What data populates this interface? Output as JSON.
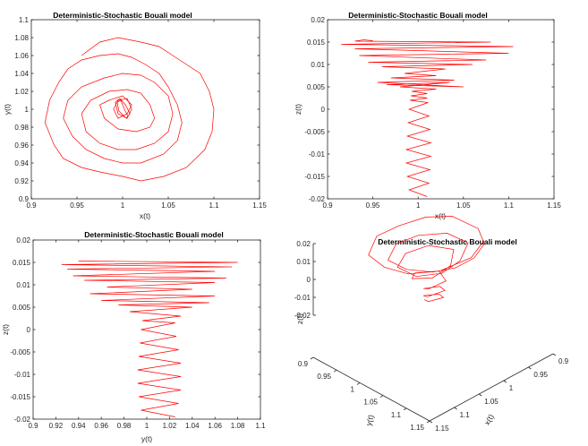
{
  "chart_data": [
    {
      "id": "xy",
      "type": "line",
      "title": "Deterministic-Stochastic Bouali model",
      "xlabel": "x(t)",
      "ylabel": "y(t)",
      "xlim": [
        0.9,
        1.15
      ],
      "ylim": [
        0.9,
        1.1
      ],
      "xticks": [
        0.9,
        0.95,
        1,
        1.05,
        1.1,
        1.15
      ],
      "yticks": [
        0.9,
        0.92,
        0.94,
        0.96,
        0.98,
        1,
        1.02,
        1.04,
        1.06,
        1.08,
        1.1
      ],
      "xtick_labels": [
        "0.9",
        "0.95",
        "1",
        "1.05",
        "1.1",
        "1.15"
      ],
      "ytick_labels": [
        "0.9",
        "0.92",
        "0.94",
        "0.96",
        "0.98",
        "1",
        "1.02",
        "1.04",
        "1.06",
        "1.08",
        "1.1"
      ],
      "series_color": "#ff0000",
      "x": [
        0.955,
        0.975,
        0.995,
        1.02,
        1.04,
        1.055,
        1.07,
        1.085,
        1.095,
        1.1,
        1.098,
        1.09,
        1.07,
        1.045,
        1.02,
        1.0,
        0.975,
        0.955,
        0.935,
        0.925,
        0.915,
        0.92,
        0.93,
        0.94,
        0.955,
        0.975,
        0.995,
        1.01,
        1.025,
        1.04,
        1.05,
        1.06,
        1.065,
        1.06,
        1.045,
        1.02,
        1.0,
        0.98,
        0.96,
        0.945,
        0.935,
        0.94,
        0.955,
        0.98,
        1.0,
        1.02,
        1.035,
        1.05,
        1.055,
        1.05,
        1.035,
        1.015,
        0.995,
        0.975,
        0.96,
        0.955,
        0.965,
        0.985,
        1.005,
        1.02,
        1.03,
        1.035,
        1.03,
        1.015,
        0.995,
        0.98,
        0.975,
        0.985,
        1.0,
        1.01,
        1.005,
        0.995,
        0.99,
        0.995,
        1.005,
        1.01,
        1.005,
        0.995,
        0.992,
        0.997,
        1.003,
        1.008,
        1.004,
        0.996,
        0.994,
        0.998,
        1.002,
        1.006
      ],
      "y": [
        1.06,
        1.075,
        1.08,
        1.075,
        1.07,
        1.06,
        1.05,
        1.04,
        1.02,
        1.0,
        0.975,
        0.955,
        0.935,
        0.925,
        0.92,
        0.925,
        0.93,
        0.935,
        0.945,
        0.96,
        0.985,
        1.01,
        1.03,
        1.045,
        1.055,
        1.06,
        1.062,
        1.058,
        1.05,
        1.04,
        1.025,
        1.005,
        0.985,
        0.965,
        0.95,
        0.94,
        0.94,
        0.945,
        0.955,
        0.97,
        0.99,
        1.01,
        1.025,
        1.035,
        1.04,
        1.038,
        1.03,
        1.015,
        0.995,
        0.975,
        0.962,
        0.955,
        0.955,
        0.962,
        0.975,
        0.995,
        1.01,
        1.02,
        1.022,
        1.018,
        1.005,
        0.99,
        0.98,
        0.975,
        0.978,
        0.99,
        1.005,
        1.01,
        1.015,
        1.005,
        0.995,
        0.99,
        1.0,
        1.01,
        1.012,
        1.0,
        0.99,
        0.995,
        1.008,
        1.012,
        1.005,
        0.995,
        0.99,
        0.998,
        1.008,
        1.01,
        1.0,
        0.992
      ]
    },
    {
      "id": "xz",
      "type": "line",
      "title": "Deterministic-Stochastic Bouali model",
      "xlabel": "x(t)",
      "ylabel": "z(t)",
      "xlim": [
        0.9,
        1.15
      ],
      "ylim": [
        -0.02,
        0.02
      ],
      "xticks": [
        0.9,
        0.95,
        1,
        1.05,
        1.1,
        1.15
      ],
      "yticks": [
        -0.02,
        -0.015,
        -0.01,
        -0.005,
        0,
        0.005,
        0.01,
        0.015,
        0.02
      ],
      "xtick_labels": [
        "0.9",
        "0.95",
        "1",
        "1.05",
        "1.1",
        "1.15"
      ],
      "ytick_labels": [
        "-0.02",
        "-0.015",
        "-0.01",
        "-0.005",
        "0",
        "0.005",
        "0.01",
        "0.015",
        "0.02"
      ],
      "series_color": "#ff0000",
      "x": [
        1.01,
        0.99,
        1.012,
        0.988,
        1.013,
        0.987,
        1.014,
        0.987,
        1.014,
        0.988,
        1.013,
        0.989,
        1.012,
        0.99,
        1.011,
        0.991,
        1.01,
        0.992,
        1.01,
        0.993,
        1.02,
        0.98,
        1.035,
        0.965,
        1.05,
        0.955,
        1.04,
        0.97,
        1.02,
        0.985,
        1.03,
        0.96,
        1.06,
        0.945,
        1.075,
        0.935,
        1.1,
        0.93,
        1.105,
        0.915,
        1.08,
        0.93,
        0.94,
        0.95
      ],
      "y": [
        -0.0195,
        -0.018,
        -0.0165,
        -0.015,
        -0.0135,
        -0.012,
        -0.0105,
        -0.009,
        -0.0075,
        -0.006,
        -0.0045,
        -0.003,
        -0.0015,
        0.0,
        0.0015,
        0.002,
        0.0025,
        0.003,
        0.0035,
        0.004,
        0.0045,
        0.005,
        0.006,
        0.0055,
        0.005,
        0.006,
        0.0065,
        0.007,
        0.0075,
        0.008,
        0.009,
        0.0095,
        0.01,
        0.0105,
        0.011,
        0.012,
        0.0125,
        0.0135,
        0.014,
        0.0145,
        0.015,
        0.0152,
        0.0155,
        0.0153
      ]
    },
    {
      "id": "yz",
      "type": "line",
      "title": "Deterministic-Stochastic Bouali model",
      "xlabel": "y(t)",
      "ylabel": "z(t)",
      "xlim": [
        0.9,
        1.1
      ],
      "ylim": [
        -0.02,
        0.02
      ],
      "xticks": [
        0.9,
        0.92,
        0.94,
        0.96,
        0.98,
        1,
        1.02,
        1.04,
        1.06,
        1.08,
        1.1
      ],
      "yticks": [
        -0.02,
        -0.015,
        -0.01,
        -0.005,
        0,
        0.005,
        0.01,
        0.015,
        0.02
      ],
      "xtick_labels": [
        "0.9",
        "0.92",
        "0.94",
        "0.96",
        "0.98",
        "1",
        "1.02",
        "1.04",
        "1.06",
        "1.08",
        "1.1"
      ],
      "ytick_labels": [
        "-0.02",
        "-0.015",
        "-0.01",
        "-0.005",
        "0",
        "0.005",
        "0.01",
        "0.015",
        "0.02"
      ],
      "series_color": "#ff0000",
      "x": [
        1.025,
        0.995,
        1.028,
        0.993,
        1.03,
        0.992,
        1.03,
        0.992,
        1.03,
        0.993,
        1.028,
        0.994,
        1.026,
        0.995,
        1.025,
        0.996,
        1.03,
        0.985,
        1.04,
        0.975,
        1.055,
        0.96,
        1.06,
        0.95,
        1.04,
        0.965,
        1.06,
        0.945,
        1.07,
        0.935,
        1.06,
        0.93,
        1.075,
        0.925,
        1.08,
        0.94
      ],
      "y": [
        -0.0195,
        -0.018,
        -0.0165,
        -0.015,
        -0.0135,
        -0.012,
        -0.0105,
        -0.009,
        -0.0075,
        -0.006,
        -0.0045,
        -0.003,
        -0.0015,
        0.0,
        0.0015,
        0.002,
        0.003,
        0.004,
        0.005,
        0.0055,
        0.006,
        0.0065,
        0.0075,
        0.008,
        0.009,
        0.0095,
        0.0105,
        0.011,
        0.0115,
        0.012,
        0.013,
        0.0135,
        0.014,
        0.0145,
        0.015,
        0.0153
      ]
    },
    {
      "id": "xyz",
      "type": "line",
      "title": "Deterministic-Stochastic Bouali model",
      "xlabel": "x(t)",
      "ylabel": "y(t)",
      "zlabel": "z(t)",
      "xlim": [
        0.9,
        1.15
      ],
      "ylim": [
        0.9,
        1.15
      ],
      "zlim": [
        -0.02,
        0.02
      ],
      "xticks": [
        0.9,
        0.95,
        1,
        1.05,
        1.1,
        1.15
      ],
      "yticks": [
        0.9,
        0.95,
        1,
        1.05,
        1.1,
        1.15
      ],
      "zticks": [
        -0.02,
        -0.01,
        0,
        0.01,
        0.02
      ],
      "xtick_labels": [
        "0.9",
        "0.95",
        "1",
        "1.05",
        "1.1",
        "1.15"
      ],
      "ytick_labels": [
        "0.9",
        "0.95",
        "1",
        "1.05",
        "1.1",
        "1.15"
      ],
      "ztick_labels": [
        "-0.02",
        "-0.01",
        "0",
        "0.01",
        "0.02"
      ],
      "series_color": "#ff0000",
      "x": [
        0.955,
        1.0,
        1.055,
        1.09,
        1.1,
        1.09,
        1.045,
        1.0,
        0.955,
        0.925,
        0.92,
        0.94,
        0.975,
        1.01,
        1.04,
        1.06,
        1.06,
        1.02,
        0.98,
        0.945,
        0.94,
        0.98,
        1.02,
        1.05,
        1.05,
        1.015,
        0.975,
        0.955,
        0.985,
        1.02,
        1.035,
        1.015,
        0.98,
        0.985,
        1.01,
        1.012,
        0.988,
        0.987,
        1.013,
        1.012,
        0.99,
        0.99,
        1.011,
        1.01
      ],
      "y": [
        1.06,
        1.08,
        1.07,
        1.04,
        1.0,
        0.955,
        0.925,
        0.925,
        0.935,
        0.96,
        1.01,
        1.045,
        1.06,
        1.058,
        1.04,
        1.005,
        0.965,
        0.94,
        0.945,
        0.97,
        1.01,
        1.035,
        1.038,
        1.015,
        0.975,
        0.955,
        0.962,
        0.995,
        1.02,
        1.018,
        0.99,
        0.975,
        0.99,
        1.01,
        1.0,
        0.99,
        1.0,
        1.01,
        1.0,
        0.99,
        1.0,
        1.01,
        1.0,
        0.99
      ],
      "z": [
        0.015,
        0.0152,
        0.0145,
        0.014,
        0.0135,
        0.0125,
        0.012,
        0.011,
        0.0105,
        0.01,
        0.0095,
        0.009,
        0.0085,
        0.008,
        0.0075,
        0.007,
        0.0065,
        0.006,
        0.0055,
        0.005,
        0.0045,
        0.004,
        0.0035,
        0.003,
        0.0025,
        0.002,
        0.0015,
        0.001,
        0.0,
        -0.002,
        -0.004,
        -0.006,
        -0.008,
        -0.01,
        -0.012,
        -0.013,
        -0.014,
        -0.015,
        -0.016,
        -0.017,
        -0.018,
        -0.0185,
        -0.019,
        -0.0195
      ]
    }
  ]
}
